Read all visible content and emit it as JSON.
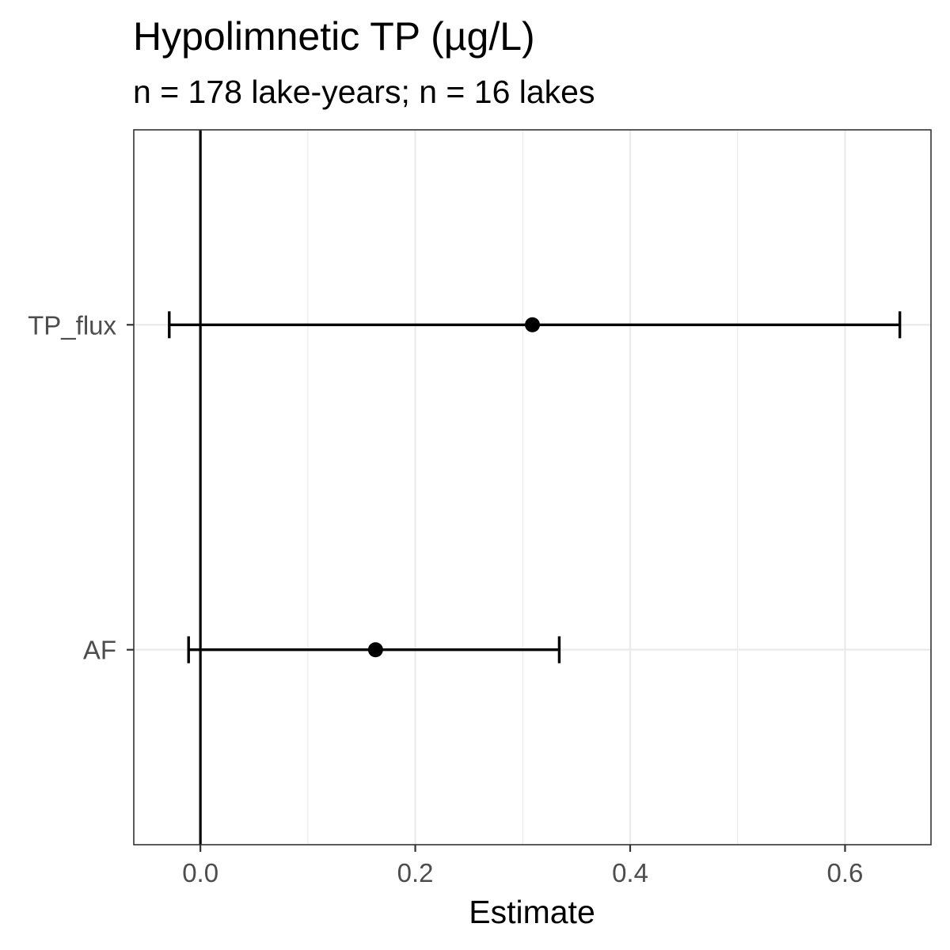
{
  "chart_data": {
    "type": "errorbar",
    "title": "Hypolimnetic TP (µg/L)",
    "subtitle": "n = 178 lake-years; n = 16 lakes",
    "xlabel": "Estimate",
    "ylabel": "",
    "xlim": [
      -0.062,
      0.68
    ],
    "x_ticks": [
      0.0,
      0.2,
      0.4,
      0.6
    ],
    "x_tick_labels": [
      "0.0",
      "0.2",
      "0.4",
      "0.6"
    ],
    "categories": [
      "AF",
      "TP_flux"
    ],
    "estimates": [
      0.163,
      0.309
    ],
    "ci_lower": [
      -0.011,
      -0.029
    ],
    "ci_upper": [
      0.334,
      0.651
    ],
    "reference_line_x": 0,
    "grid": true,
    "colors": {
      "points": "#000000",
      "grid": "#ebebeb",
      "panel_border": "#333333",
      "tick_text": "#4d4d4d"
    }
  }
}
